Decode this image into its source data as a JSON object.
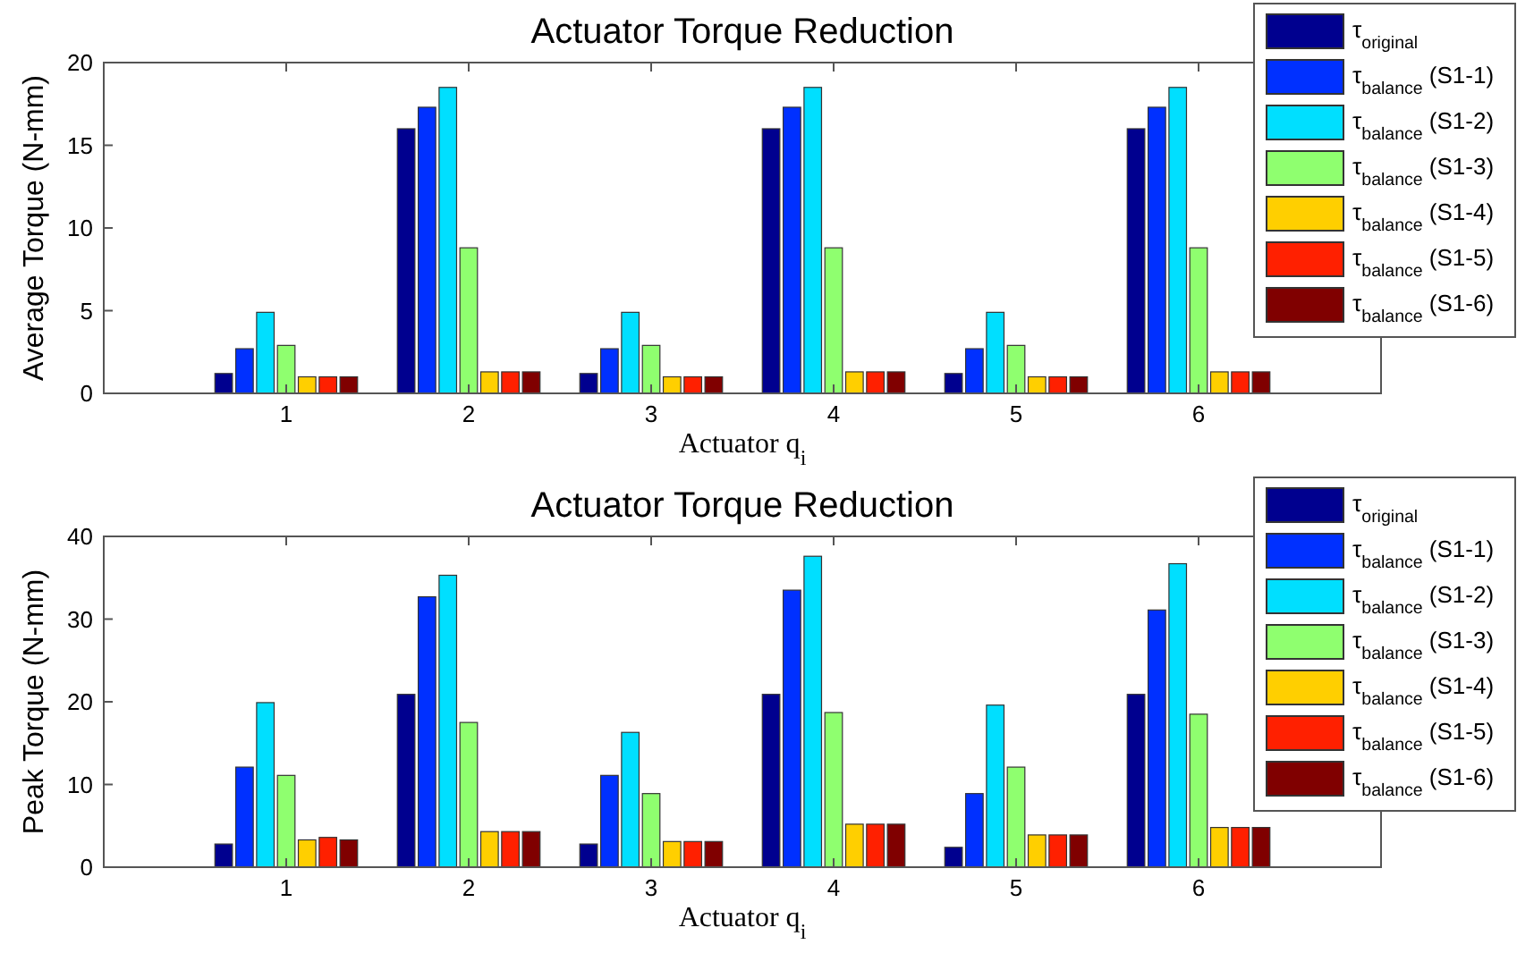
{
  "chart_data": [
    {
      "type": "bar",
      "title": "Actuator Torque Reduction",
      "xlabel": "Actuator q$_{i}$",
      "ylabel": "Average Torque (N-mm)",
      "categories": [
        "1",
        "2",
        "3",
        "4",
        "5",
        "6"
      ],
      "ylim": [
        0,
        20
      ],
      "yticks": [
        0,
        5,
        10,
        15,
        20
      ],
      "grid": false,
      "legend": "top right",
      "series": [
        {
          "name": "τ$_{original}$",
          "color": "#00008f",
          "values": [
            1.2,
            16.0,
            1.2,
            16.0,
            1.2,
            16.0
          ]
        },
        {
          "name": "τ$_{balance}$ (S1-1)",
          "color": "#0030ff",
          "values": [
            2.7,
            17.3,
            2.7,
            17.3,
            2.7,
            17.3
          ]
        },
        {
          "name": "τ$_{balance}$ (S1-2)",
          "color": "#00dfff",
          "values": [
            4.9,
            18.5,
            4.9,
            18.5,
            4.9,
            18.5
          ]
        },
        {
          "name": "τ$_{balance}$ (S1-3)",
          "color": "#8fff6f",
          "values": [
            2.9,
            8.8,
            2.9,
            8.8,
            2.9,
            8.8
          ]
        },
        {
          "name": "τ$_{balance}$ (S1-4)",
          "color": "#ffcf00",
          "values": [
            1.0,
            1.3,
            1.0,
            1.3,
            1.0,
            1.3
          ]
        },
        {
          "name": "τ$_{balance}$ (S1-5)",
          "color": "#ff2000",
          "values": [
            1.0,
            1.3,
            1.0,
            1.3,
            1.0,
            1.3
          ]
        },
        {
          "name": "τ$_{balance}$ (S1-6)",
          "color": "#800000",
          "values": [
            1.0,
            1.3,
            1.0,
            1.3,
            1.0,
            1.3
          ]
        }
      ]
    },
    {
      "type": "bar",
      "title": "Actuator Torque Reduction",
      "xlabel": "Actuator q$_{i}$",
      "ylabel": "Peak Torque (N-mm)",
      "categories": [
        "1",
        "2",
        "3",
        "4",
        "5",
        "6"
      ],
      "ylim": [
        0,
        40
      ],
      "yticks": [
        0,
        10,
        20,
        30,
        40
      ],
      "grid": false,
      "legend": "top right",
      "series": [
        {
          "name": "τ$_{original}$",
          "color": "#00008f",
          "values": [
            2.8,
            20.9,
            2.8,
            20.9,
            2.4,
            20.9
          ]
        },
        {
          "name": "τ$_{balance}$ (S1-1)",
          "color": "#0030ff",
          "values": [
            12.1,
            32.7,
            11.1,
            33.5,
            8.9,
            31.1
          ]
        },
        {
          "name": "τ$_{balance}$ (S1-2)",
          "color": "#00dfff",
          "values": [
            19.9,
            35.3,
            16.3,
            37.6,
            19.6,
            36.7
          ]
        },
        {
          "name": "τ$_{balance}$ (S1-3)",
          "color": "#8fff6f",
          "values": [
            11.1,
            17.5,
            8.9,
            18.7,
            12.1,
            18.5
          ]
        },
        {
          "name": "τ$_{balance}$ (S1-4)",
          "color": "#ffcf00",
          "values": [
            3.3,
            4.3,
            3.1,
            5.2,
            3.9,
            4.8
          ]
        },
        {
          "name": "τ$_{balance}$ (S1-5)",
          "color": "#ff2000",
          "values": [
            3.6,
            4.3,
            3.1,
            5.2,
            3.9,
            4.8
          ]
        },
        {
          "name": "τ$_{balance}$ (S1-6)",
          "color": "#800000",
          "values": [
            3.3,
            4.3,
            3.1,
            5.2,
            3.9,
            4.8
          ]
        }
      ]
    }
  ]
}
